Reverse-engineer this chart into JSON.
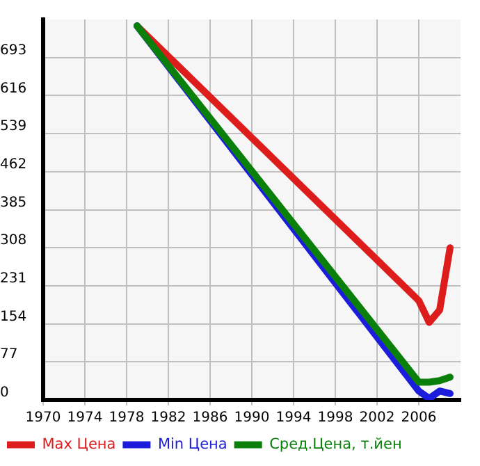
{
  "chart_data": {
    "type": "line",
    "x": [
      1979,
      2006,
      2007,
      2008,
      2009
    ],
    "series": [
      {
        "name": "Max Цена",
        "color": "#dd1c1c",
        "values": [
          757,
          201,
          157,
          182,
          308
        ]
      },
      {
        "name": "Min Цена",
        "color": "#1c1cdd",
        "values": [
          757,
          18,
          3,
          18,
          13
        ]
      },
      {
        "name": "Сред.Цена, т.йен",
        "color": "#0a800a",
        "values": [
          757,
          36,
          36,
          39,
          46
        ]
      }
    ],
    "xlim": [
      1970,
      2010
    ],
    "xticks": [
      1970,
      1974,
      1978,
      1982,
      1986,
      1990,
      1994,
      1998,
      2002,
      2006
    ],
    "ylim": [
      0,
      770
    ],
    "yticks": [
      0,
      77,
      154,
      231,
      308,
      385,
      462,
      539,
      616,
      693
    ],
    "grid": true,
    "legend": "bottom",
    "marker": "none",
    "line_style": "solid"
  }
}
